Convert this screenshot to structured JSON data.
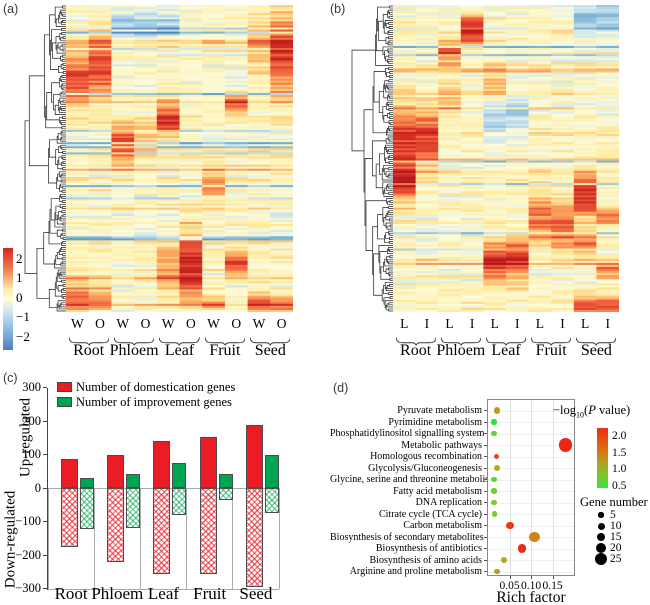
{
  "panel_labels": {
    "a": "(a)",
    "b": "(b)",
    "c": "(c)",
    "d": "(d)"
  },
  "chart_data": [
    {
      "id": "heatmap_a",
      "type": "heatmap",
      "panel": "a",
      "condition_labels": [
        "W",
        "O"
      ],
      "tissues": [
        "Root",
        "Phloem",
        "Leaf",
        "Fruit",
        "Seed"
      ],
      "colorbar_ticks": [
        "2",
        "1",
        "0",
        "−1",
        "−2"
      ],
      "value_range": [
        -2,
        2
      ],
      "n_columns": 10,
      "rows": 150,
      "seed": 11,
      "colormap_anchors": [
        [
          -2.6,
          "#3565af"
        ],
        [
          -1.5,
          "#74add1"
        ],
        [
          -0.7,
          "#c6e2ef"
        ],
        [
          -0.15,
          "#fdfbd9"
        ],
        [
          0.45,
          "#feeb9e"
        ],
        [
          1.1,
          "#fdae61"
        ],
        [
          1.7,
          "#f46d43"
        ],
        [
          2.4,
          "#d73027"
        ],
        [
          3.0,
          "#b31a1d"
        ]
      ],
      "hotspots": [
        {
          "col": 0,
          "c": 0.235,
          "s": 0.055,
          "a": 2.1
        },
        {
          "col": 1,
          "c": 0.2,
          "s": 0.065,
          "a": 2.2
        },
        {
          "col": 0,
          "c": 0.95,
          "s": 0.035,
          "a": 1.9
        },
        {
          "col": 1,
          "c": 0.95,
          "s": 0.03,
          "a": 1.5
        },
        {
          "col": 2,
          "c": 0.445,
          "s": 0.04,
          "a": 2.2
        },
        {
          "col": 3,
          "c": 0.43,
          "s": 0.03,
          "a": 1.0
        },
        {
          "col": 4,
          "c": 0.37,
          "s": 0.04,
          "a": 2.2
        },
        {
          "col": 2,
          "c": 0.06,
          "s": 0.03,
          "a": -1.2
        },
        {
          "col": 3,
          "c": 0.06,
          "s": 0.03,
          "a": -1.1
        },
        {
          "col": 4,
          "c": 0.06,
          "s": 0.03,
          "a": -1.0
        },
        {
          "col": 5,
          "c": 0.85,
          "s": 0.085,
          "a": 2.4
        },
        {
          "col": 4,
          "c": 0.86,
          "s": 0.06,
          "a": 1.1
        },
        {
          "col": 6,
          "c": 0.58,
          "s": 0.035,
          "a": 1.3
        },
        {
          "col": 7,
          "c": 0.315,
          "s": 0.022,
          "a": 1.9
        },
        {
          "col": 7,
          "c": 0.84,
          "s": 0.025,
          "a": 2.2
        },
        {
          "col": 8,
          "c": 0.14,
          "s": 0.08,
          "a": 0.9
        },
        {
          "col": 9,
          "c": 0.16,
          "s": 0.09,
          "a": 2.3
        },
        {
          "col": 8,
          "c": 0.97,
          "s": 0.025,
          "a": 2.0
        },
        {
          "col": 9,
          "c": 0.97,
          "s": 0.025,
          "a": 1.6
        },
        {
          "col": 6,
          "c": 0.97,
          "s": 0.02,
          "a": 1.2
        }
      ]
    },
    {
      "id": "heatmap_b",
      "type": "heatmap",
      "panel": "b",
      "condition_labels": [
        "L",
        "I"
      ],
      "tissues": [
        "Root",
        "Phloem",
        "Leaf",
        "Fruit",
        "Seed"
      ],
      "value_range": [
        -2,
        2
      ],
      "n_columns": 10,
      "rows": 150,
      "seed": 29,
      "colormap_anchors": [
        [
          -2.6,
          "#3565af"
        ],
        [
          -1.5,
          "#74add1"
        ],
        [
          -0.7,
          "#c6e2ef"
        ],
        [
          -0.15,
          "#fdfbd9"
        ],
        [
          0.45,
          "#feeb9e"
        ],
        [
          1.1,
          "#fdae61"
        ],
        [
          1.7,
          "#f46d43"
        ],
        [
          2.4,
          "#d73027"
        ],
        [
          3.0,
          "#b31a1d"
        ]
      ],
      "hotspots": [
        {
          "col": 0,
          "c": 0.46,
          "s": 0.1,
          "a": 2.2
        },
        {
          "col": 0,
          "c": 0.58,
          "s": 0.03,
          "a": 1.6
        },
        {
          "col": 1,
          "c": 0.43,
          "s": 0.07,
          "a": 2.0
        },
        {
          "col": 2,
          "c": 0.15,
          "s": 0.025,
          "a": 2.1
        },
        {
          "col": 2,
          "c": 0.3,
          "s": 0.04,
          "a": 1.0
        },
        {
          "col": 3,
          "c": 0.08,
          "s": 0.035,
          "a": 2.3
        },
        {
          "col": 4,
          "c": 0.83,
          "s": 0.045,
          "a": 2.4
        },
        {
          "col": 5,
          "c": 0.82,
          "s": 0.05,
          "a": 2.2
        },
        {
          "col": 4,
          "c": 0.25,
          "s": 0.04,
          "a": 1.0
        },
        {
          "col": 6,
          "c": 0.7,
          "s": 0.055,
          "a": 1.7
        },
        {
          "col": 7,
          "c": 0.72,
          "s": 0.055,
          "a": 2.0
        },
        {
          "col": 8,
          "c": 0.62,
          "s": 0.05,
          "a": 2.4
        },
        {
          "col": 8,
          "c": 0.77,
          "s": 0.025,
          "a": 1.7
        },
        {
          "col": 9,
          "c": 0.69,
          "s": 0.02,
          "a": 1.7
        },
        {
          "col": 9,
          "c": 0.86,
          "s": 0.02,
          "a": 1.5
        },
        {
          "col": 8,
          "c": 0.975,
          "s": 0.02,
          "a": 1.8
        },
        {
          "col": 9,
          "c": 0.975,
          "s": 0.02,
          "a": 1.9
        },
        {
          "col": 8,
          "c": 0.05,
          "s": 0.04,
          "a": -1.3
        },
        {
          "col": 9,
          "c": 0.05,
          "s": 0.04,
          "a": -1.2
        },
        {
          "col": 4,
          "c": 0.38,
          "s": 0.05,
          "a": -1.0
        },
        {
          "col": 5,
          "c": 0.36,
          "s": 0.05,
          "a": -0.9
        }
      ]
    },
    {
      "id": "bar_c",
      "type": "bar",
      "categories": [
        "Root",
        "Phloem",
        "Leaf",
        "Fruit",
        "Seed"
      ],
      "ylim": [
        -300,
        300
      ],
      "y_ticks": [
        "300",
        "200",
        "100",
        "0",
        "−100",
        "−200",
        "−300"
      ],
      "y_tick_values": [
        300,
        200,
        100,
        0,
        -100,
        -200,
        -300
      ],
      "axis_label_up": "Up-regulated",
      "axis_label_down": "Down-regulated",
      "legend": [
        {
          "label": "Number of domestication genes",
          "color": "#ec1c24"
        },
        {
          "label": "Number of improvement genes",
          "color": "#00a551"
        }
      ],
      "series": [
        {
          "name": "Number of domestication genes",
          "direction": "up",
          "values": [
            88,
            100,
            140,
            151,
            187
          ]
        },
        {
          "name": "Number of improvement genes",
          "direction": "up",
          "values": [
            30,
            43,
            74,
            43,
            100
          ]
        },
        {
          "name": "Number of domestication genes",
          "direction": "down",
          "values": [
            -175,
            -220,
            -257,
            -257,
            -296
          ]
        },
        {
          "name": "Number of improvement genes",
          "direction": "down",
          "values": [
            -122,
            -118,
            -81,
            -35,
            -76
          ]
        }
      ]
    },
    {
      "id": "dot_d",
      "type": "scatter",
      "xlabel": "Rich factor",
      "x_ticks": [
        "0.05",
        "0.10",
        "0.15"
      ],
      "x_tick_values": [
        0.05,
        0.1,
        0.15
      ],
      "xlim": [
        0,
        0.2
      ],
      "color_legend": {
        "prefix": "−log",
        "sub": "10",
        "suffix_open": "(",
        "italic": "P",
        "suffix_rest": " value)",
        "ticks": [
          "2.0",
          "1.5",
          "1.0",
          "0.5"
        ],
        "tick_values": [
          2.0,
          1.5,
          1.0,
          0.5
        ]
      },
      "size_legend": {
        "title": "Gene number",
        "values": [
          5,
          10,
          15,
          20,
          25
        ]
      },
      "points": [
        {
          "pathway": "Pyruvate metabolism",
          "rich_factor": 0.021,
          "neg_log10_p": 1.25,
          "gene_number": 8
        },
        {
          "pathway": "Pyrimidine metabolism",
          "rich_factor": 0.014,
          "neg_log10_p": 0.5,
          "gene_number": 5
        },
        {
          "pathway": "Phosphatidylinositol signalling system",
          "rich_factor": 0.014,
          "neg_log10_p": 0.7,
          "gene_number": 5
        },
        {
          "pathway": "Metabolic pathways",
          "rich_factor": 0.18,
          "neg_log10_p": 2.2,
          "gene_number": 27
        },
        {
          "pathway": "Homologous recombination",
          "rich_factor": 0.019,
          "neg_log10_p": 1.8,
          "gene_number": 5
        },
        {
          "pathway": "Glycolysis/Gluconeogenesis",
          "rich_factor": 0.021,
          "neg_log10_p": 1.1,
          "gene_number": 7
        },
        {
          "pathway": "Glycine, serine and threonine metabolism",
          "rich_factor": 0.014,
          "neg_log10_p": 0.7,
          "gene_number": 5
        },
        {
          "pathway": "Fatty acid metabolism",
          "rich_factor": 0.014,
          "neg_log10_p": 0.8,
          "gene_number": 5
        },
        {
          "pathway": "DNA replication",
          "rich_factor": 0.014,
          "neg_log10_p": 0.8,
          "gene_number": 5
        },
        {
          "pathway": "Citrate cycle (TCA cycle)",
          "rich_factor": 0.016,
          "neg_log10_p": 0.8,
          "gene_number": 5
        },
        {
          "pathway": "Carbon metabolism",
          "rich_factor": 0.051,
          "neg_log10_p": 1.9,
          "gene_number": 12
        },
        {
          "pathway": "Biosynthesis of secondary metabolites",
          "rich_factor": 0.109,
          "neg_log10_p": 1.35,
          "gene_number": 20
        },
        {
          "pathway": "Biosynthesis of antibiotics",
          "rich_factor": 0.079,
          "neg_log10_p": 2.1,
          "gene_number": 14
        },
        {
          "pathway": "Biosynthesis of amino acids",
          "rich_factor": 0.037,
          "neg_log10_p": 1.15,
          "gene_number": 9
        },
        {
          "pathway": "Arginine and proline metabolism",
          "rich_factor": 0.021,
          "neg_log10_p": 1.2,
          "gene_number": 6
        }
      ]
    }
  ]
}
